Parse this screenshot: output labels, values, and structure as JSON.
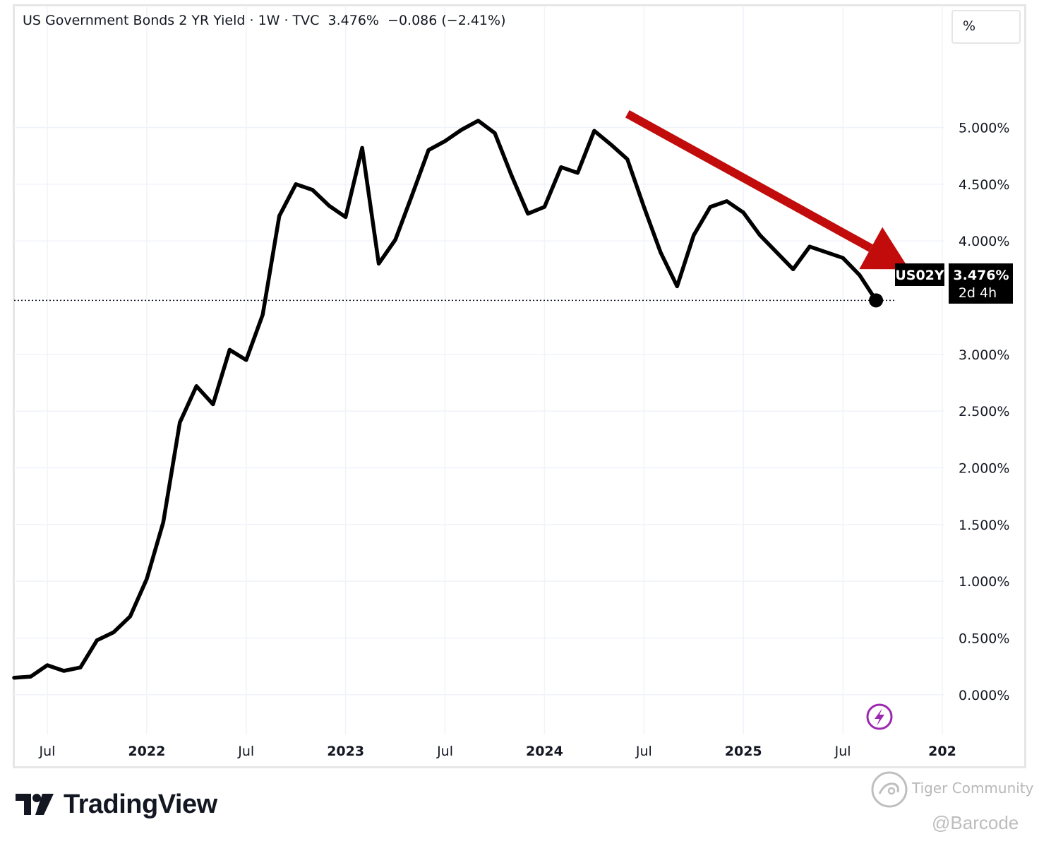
{
  "header": {
    "title": "US Government Bonds 2 YR Yield · 1W · TVC  3.476%  −0.086 (−2.41%)"
  },
  "unit_button": {
    "label": "%"
  },
  "price_label": {
    "symbol": "US02Y",
    "value": "3.476%",
    "countdown": "2d 4h"
  },
  "footer": {
    "brand": "TradingView",
    "community": "Tiger Community",
    "handle": "@Barcode"
  },
  "colors": {
    "line": "#000000",
    "arrow": "#c20b0b",
    "grid": "#f0f3fa",
    "label_bg": "#000000",
    "lightning": "#9c27b0"
  },
  "icons": [
    "tradingview-logo-icon",
    "lightning-icon",
    "tiger-community-icon"
  ],
  "chart_data": {
    "type": "line",
    "series": [
      {
        "name": "US02Y"
      }
    ],
    "x": [
      "2021-05",
      "2021-06",
      "2021-07",
      "2021-08",
      "2021-09",
      "2021-10",
      "2021-11",
      "2021-12",
      "2022-01",
      "2022-02",
      "2022-03",
      "2022-04",
      "2022-05",
      "2022-06",
      "2022-07",
      "2022-08",
      "2022-09",
      "2022-10",
      "2022-11",
      "2022-12",
      "2023-01",
      "2023-02",
      "2023-03",
      "2023-04",
      "2023-05",
      "2023-06",
      "2023-07",
      "2023-08",
      "2023-09",
      "2023-10",
      "2023-11",
      "2023-12",
      "2024-01",
      "2024-02",
      "2024-03",
      "2024-04",
      "2024-05",
      "2024-06",
      "2024-07",
      "2024-08",
      "2024-09",
      "2024-10",
      "2024-11",
      "2024-12",
      "2025-01",
      "2025-02",
      "2025-03",
      "2025-04",
      "2025-05",
      "2025-06",
      "2025-07",
      "2025-08",
      "2025-09"
    ],
    "values": [
      0.15,
      0.16,
      0.26,
      0.21,
      0.24,
      0.48,
      0.55,
      0.69,
      1.02,
      1.52,
      2.4,
      2.72,
      2.56,
      3.04,
      2.95,
      3.35,
      4.22,
      4.5,
      4.45,
      4.31,
      4.21,
      4.82,
      3.8,
      4.01,
      4.4,
      4.8,
      4.88,
      4.98,
      5.06,
      4.95,
      4.58,
      4.24,
      4.3,
      4.65,
      4.6,
      4.97,
      4.85,
      4.72,
      4.3,
      3.9,
      3.6,
      4.05,
      4.3,
      4.35,
      4.25,
      4.05,
      3.9,
      3.75,
      3.95,
      3.9,
      3.85,
      3.7,
      3.476
    ],
    "last_value": 3.476,
    "yticks": [
      "0.000%",
      "0.500%",
      "1.000%",
      "1.500%",
      "2.000%",
      "2.500%",
      "3.000%",
      "4.000%",
      "4.500%",
      "5.000%"
    ],
    "ylim": [
      -0.35,
      5.75
    ],
    "xticks": [
      {
        "label": "Jul",
        "date": "2021-07",
        "bold": false
      },
      {
        "label": "2022",
        "date": "2022-01",
        "bold": true
      },
      {
        "label": "Jul",
        "date": "2022-07",
        "bold": false
      },
      {
        "label": "2023",
        "date": "2023-01",
        "bold": true
      },
      {
        "label": "Jul",
        "date": "2023-07",
        "bold": false
      },
      {
        "label": "2024",
        "date": "2024-01",
        "bold": true
      },
      {
        "label": "Jul",
        "date": "2024-07",
        "bold": false
      },
      {
        "label": "2025",
        "date": "2025-01",
        "bold": true
      },
      {
        "label": "Jul",
        "date": "2025-07",
        "bold": false
      },
      {
        "label": "202",
        "date": "2026-01",
        "bold": true
      }
    ],
    "xlim": [
      "2021-05",
      "2026-01"
    ],
    "grid": true,
    "annotation": {
      "type": "arrow",
      "from": {
        "date": "2024-06",
        "value": 5.12
      },
      "to": {
        "date": "2025-11",
        "value": 3.75
      }
    }
  }
}
